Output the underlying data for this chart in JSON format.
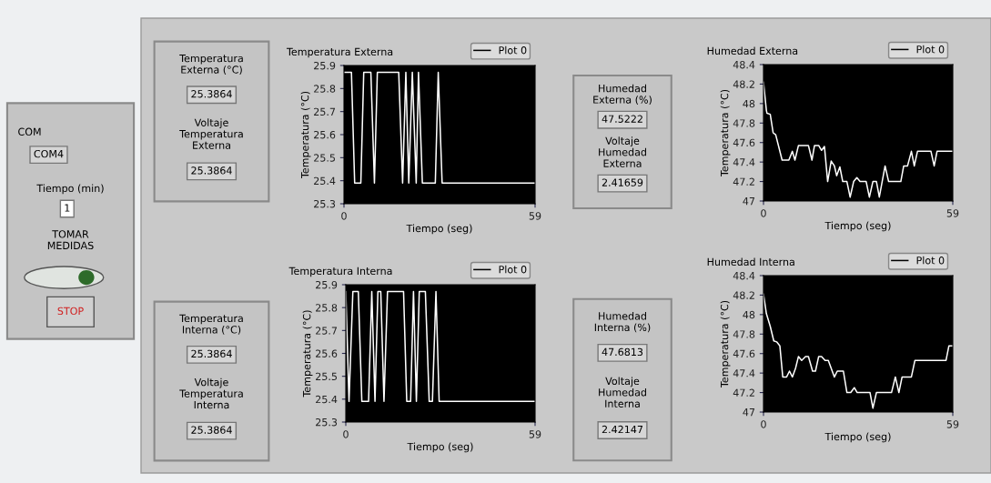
{
  "chart_data": [
    {
      "type": "other",
      "annotations": [
        "COM",
        "COM4",
        "Tiempo (min)",
        "1",
        "TOMAR\nMEDIDAS",
        "STOP"
      ]
    },
    {
      "type": "other",
      "annotations": [
        "Temperatura\nExterna (°C)",
        "25.3864",
        "Voltaje\nTemperatura\nExterna",
        "25.3864"
      ]
    },
    {
      "type": "line",
      "title": "Temperatura Externa",
      "xlabel": "Tiempo (seg)",
      "ylabel": "Temperatura (°C)",
      "xlim": [
        0,
        59
      ],
      "xticks": [
        0,
        59
      ],
      "ylim": [
        25.3,
        25.9
      ],
      "yticks": [
        25.3,
        25.4,
        25.5,
        25.6,
        25.7,
        25.8,
        25.9
      ],
      "grid": false,
      "legend": "top right",
      "marker": "none",
      "line_style": "solid",
      "series": [
        {
          "name": "Plot 0",
          "color": "#ffffff",
          "x": [
            0,
            2.3,
            3.3,
            5.2,
            6.1,
            8.3,
            9.4,
            10.3,
            16.9,
            18.1,
            19.1,
            20.0,
            21.1,
            22.3,
            23.0,
            24.2,
            28.2,
            29.1,
            30.3,
            59
          ],
          "values": [
            25.87,
            25.87,
            25.39,
            25.39,
            25.87,
            25.87,
            25.39,
            25.87,
            25.87,
            25.39,
            25.87,
            25.39,
            25.87,
            25.39,
            25.87,
            25.39,
            25.39,
            25.87,
            25.39,
            25.39
          ]
        }
      ]
    },
    {
      "type": "other",
      "annotations": [
        "Humedad\nExterna (%)",
        "47.5222",
        "Voltaje\nHumedad\nExterna",
        "2.41659"
      ]
    },
    {
      "type": "line",
      "title": "Humedad Externa",
      "xlabel": "Tiempo (seg)",
      "ylabel": "Temperatura (°C)",
      "xlim": [
        0,
        59
      ],
      "xticks": [
        0,
        59
      ],
      "ylim": [
        47,
        48.4
      ],
      "yticks": [
        47,
        47.2,
        47.4,
        47.6,
        47.8,
        48,
        48.2,
        48.4
      ],
      "grid": false,
      "legend": "top right",
      "marker": "none",
      "line_style": "solid",
      "series": [
        {
          "name": "Plot 0",
          "color": "#ffffff",
          "x": [
            0,
            0.9,
            1.1,
            2.1,
            3.0,
            3.8,
            5.8,
            7.9,
            9.0,
            9.8,
            10.9,
            14.0,
            15.1,
            15.9,
            17.2,
            18.1,
            19.0,
            20.0,
            21.1,
            22.1,
            22.8,
            23.8,
            24.7,
            26.0,
            27.0,
            28.1,
            29.1,
            30.1,
            32.0,
            33.0,
            34.1,
            35.2,
            36.1,
            37.9,
            39.0,
            42.8,
            43.7,
            44.9,
            46.1,
            47.0,
            48.0,
            52.2,
            53.2,
            54.1,
            59
          ],
          "values": [
            48.22,
            47.93,
            47.9,
            47.89,
            47.7,
            47.68,
            47.42,
            47.42,
            47.51,
            47.42,
            47.57,
            47.57,
            47.42,
            47.57,
            47.57,
            47.52,
            47.56,
            47.2,
            47.41,
            47.36,
            47.26,
            47.35,
            47.2,
            47.2,
            47.04,
            47.2,
            47.24,
            47.2,
            47.2,
            47.04,
            47.2,
            47.2,
            47.04,
            47.36,
            47.2,
            47.2,
            47.36,
            47.36,
            47.51,
            47.36,
            47.51,
            47.51,
            47.36,
            47.51,
            47.51
          ]
        }
      ]
    },
    {
      "type": "other",
      "annotations": [
        "Temperatura\nInterna (°C)",
        "25.3864",
        "Voltaje\nTemperatura\nInterna",
        "25.3864"
      ]
    },
    {
      "type": "line",
      "title": "Temperatura Interna",
      "xlabel": "Tiempo (seg)",
      "ylabel": "Temperatura (°C)",
      "xlim": [
        0,
        59
      ],
      "xticks": [
        0,
        59
      ],
      "ylim": [
        25.3,
        25.9
      ],
      "yticks": [
        25.3,
        25.4,
        25.5,
        25.6,
        25.7,
        25.8,
        25.9
      ],
      "grid": false,
      "legend": "top right",
      "marker": "none",
      "line_style": "solid",
      "series": [
        {
          "name": "Plot 0",
          "color": "#ffffff",
          "x": [
            0,
            1.0,
            2.2,
            3.9,
            5.0,
            7.1,
            8.1,
            9.1,
            10.0,
            10.9,
            11.9,
            13.0,
            18.0,
            19.0,
            20.2,
            21.1,
            22.0,
            22.9,
            24.8,
            26.0,
            27.0,
            28.1,
            29.1,
            59
          ],
          "values": [
            25.87,
            25.39,
            25.87,
            25.87,
            25.39,
            25.39,
            25.87,
            25.39,
            25.87,
            25.87,
            25.39,
            25.87,
            25.87,
            25.39,
            25.39,
            25.87,
            25.39,
            25.87,
            25.87,
            25.39,
            25.39,
            25.87,
            25.39,
            25.39
          ]
        }
      ]
    },
    {
      "type": "other",
      "annotations": [
        "Humedad\nInterna (%)",
        "47.6813",
        "Voltaje\nHumedad\nInterna",
        "2.42147"
      ]
    },
    {
      "type": "line",
      "title": "Humedad Interna",
      "xlabel": "Tiempo (seg)",
      "ylabel": "Temperatura (°C)",
      "xlim": [
        0,
        59
      ],
      "xticks": [
        0,
        59
      ],
      "ylim": [
        47,
        48.4
      ],
      "yticks": [
        47,
        47.2,
        47.4,
        47.6,
        47.8,
        48,
        48.2,
        48.4
      ],
      "grid": false,
      "legend": "top right",
      "marker": "none",
      "line_style": "solid",
      "series": [
        {
          "name": "Plot 0",
          "color": "#ffffff",
          "x": [
            0,
            0.9,
            2.1,
            3.2,
            4.1,
            5.1,
            6.0,
            7.2,
            8.1,
            9.0,
            10.0,
            10.9,
            11.9,
            13.1,
            14.0,
            15.3,
            16.2,
            17.2,
            18.1,
            19.2,
            20.2,
            22.1,
            23.0,
            24.9,
            26.0,
            27.2,
            28.3,
            29.2,
            33.2,
            34.1,
            35.2,
            39.9,
            41.1,
            42.2,
            43.2,
            46.1,
            47.2,
            56.9,
            57.8,
            59
          ],
          "values": [
            48.21,
            48.01,
            47.88,
            47.73,
            47.72,
            47.68,
            47.36,
            47.36,
            47.42,
            47.36,
            47.45,
            47.57,
            47.53,
            47.57,
            47.57,
            47.42,
            47.42,
            47.57,
            47.57,
            47.53,
            47.53,
            47.36,
            47.42,
            47.42,
            47.2,
            47.2,
            47.25,
            47.2,
            47.2,
            47.04,
            47.2,
            47.2,
            47.36,
            47.2,
            47.36,
            47.36,
            47.53,
            47.53,
            47.68,
            47.68
          ]
        }
      ]
    }
  ]
}
